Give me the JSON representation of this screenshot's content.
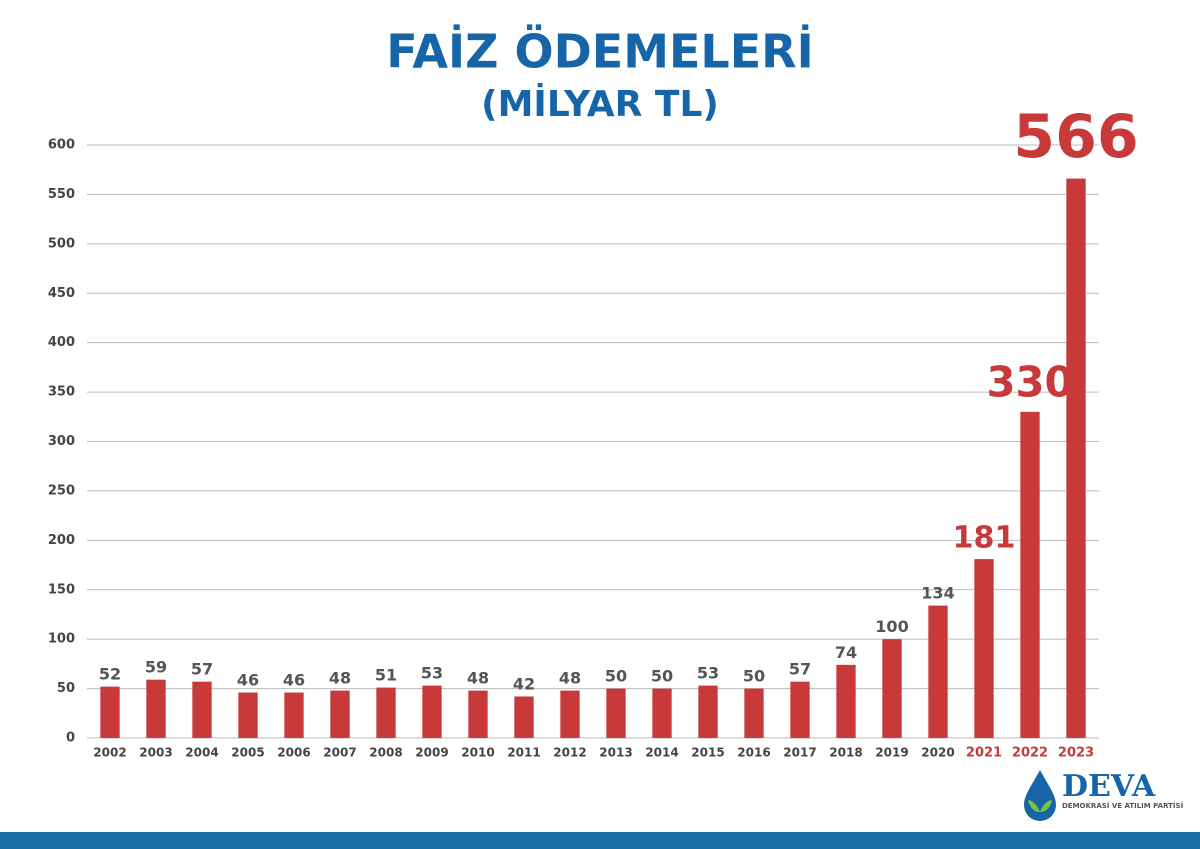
{
  "chart_data": {
    "type": "bar",
    "title": "FAİZ ÖDEMELERİ",
    "subtitle": "(MİLYAR TL)",
    "categories": [
      "2002",
      "2003",
      "2004",
      "2005",
      "2006",
      "2007",
      "2008",
      "2009",
      "2010",
      "2011",
      "2012",
      "2013",
      "2014",
      "2015",
      "2016",
      "2017",
      "2018",
      "2019",
      "2020",
      "2021",
      "2022",
      "2023"
    ],
    "values": [
      52,
      59,
      57,
      46,
      46,
      48,
      51,
      53,
      48,
      42,
      48,
      50,
      50,
      53,
      50,
      57,
      74,
      100,
      134,
      181,
      330,
      566
    ],
    "color": "#c8393a",
    "label_colors": [
      "#555555",
      "#555555",
      "#555555",
      "#555555",
      "#555555",
      "#555555",
      "#555555",
      "#555555",
      "#555555",
      "#555555",
      "#555555",
      "#555555",
      "#555555",
      "#555555",
      "#555555",
      "#555555",
      "#555555",
      "#555555",
      "#555555",
      "#c8393a",
      "#c8393a",
      "#c8393a"
    ],
    "ylim": [
      0,
      600
    ],
    "yticks": [
      0,
      50,
      100,
      150,
      200,
      250,
      300,
      350,
      400,
      450,
      500,
      550,
      600
    ],
    "grid": true,
    "logo": {
      "name": "DEVA",
      "tagline": "DEMOKRASİ VE ATILIM PARTİSİ"
    }
  }
}
